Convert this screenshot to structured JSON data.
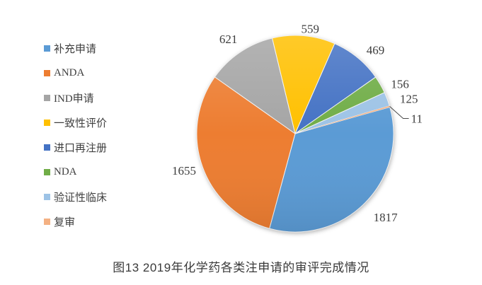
{
  "chart_data": {
    "type": "pie",
    "title": "图13 2019年化学药各类注申请的审评完成情况",
    "legend_position": "left",
    "start_angle_deg": 74.3,
    "total": 5413,
    "series": [
      {
        "label": "补充申请",
        "value": 1817,
        "color": "#5B9BD5"
      },
      {
        "label": "ANDA",
        "value": 1655,
        "color": "#ED7D31"
      },
      {
        "label": "IND申请",
        "value": 621,
        "color": "#A5A5A5"
      },
      {
        "label": "一致性评价",
        "value": 559,
        "color": "#FFC000"
      },
      {
        "label": "进口再注册",
        "value": 469,
        "color": "#4472C4"
      },
      {
        "label": "NDA",
        "value": 156,
        "color": "#70AD47"
      },
      {
        "label": "验证性临床",
        "value": 125,
        "color": "#9DC3E6"
      },
      {
        "label": "复审",
        "value": 11,
        "color": "#F4B183"
      }
    ]
  },
  "colors": {
    "label_text": "#3d3d3d",
    "leader_line": "#4a4a4a",
    "slice_border": "#f2f2f2",
    "background": "#ffffff"
  }
}
